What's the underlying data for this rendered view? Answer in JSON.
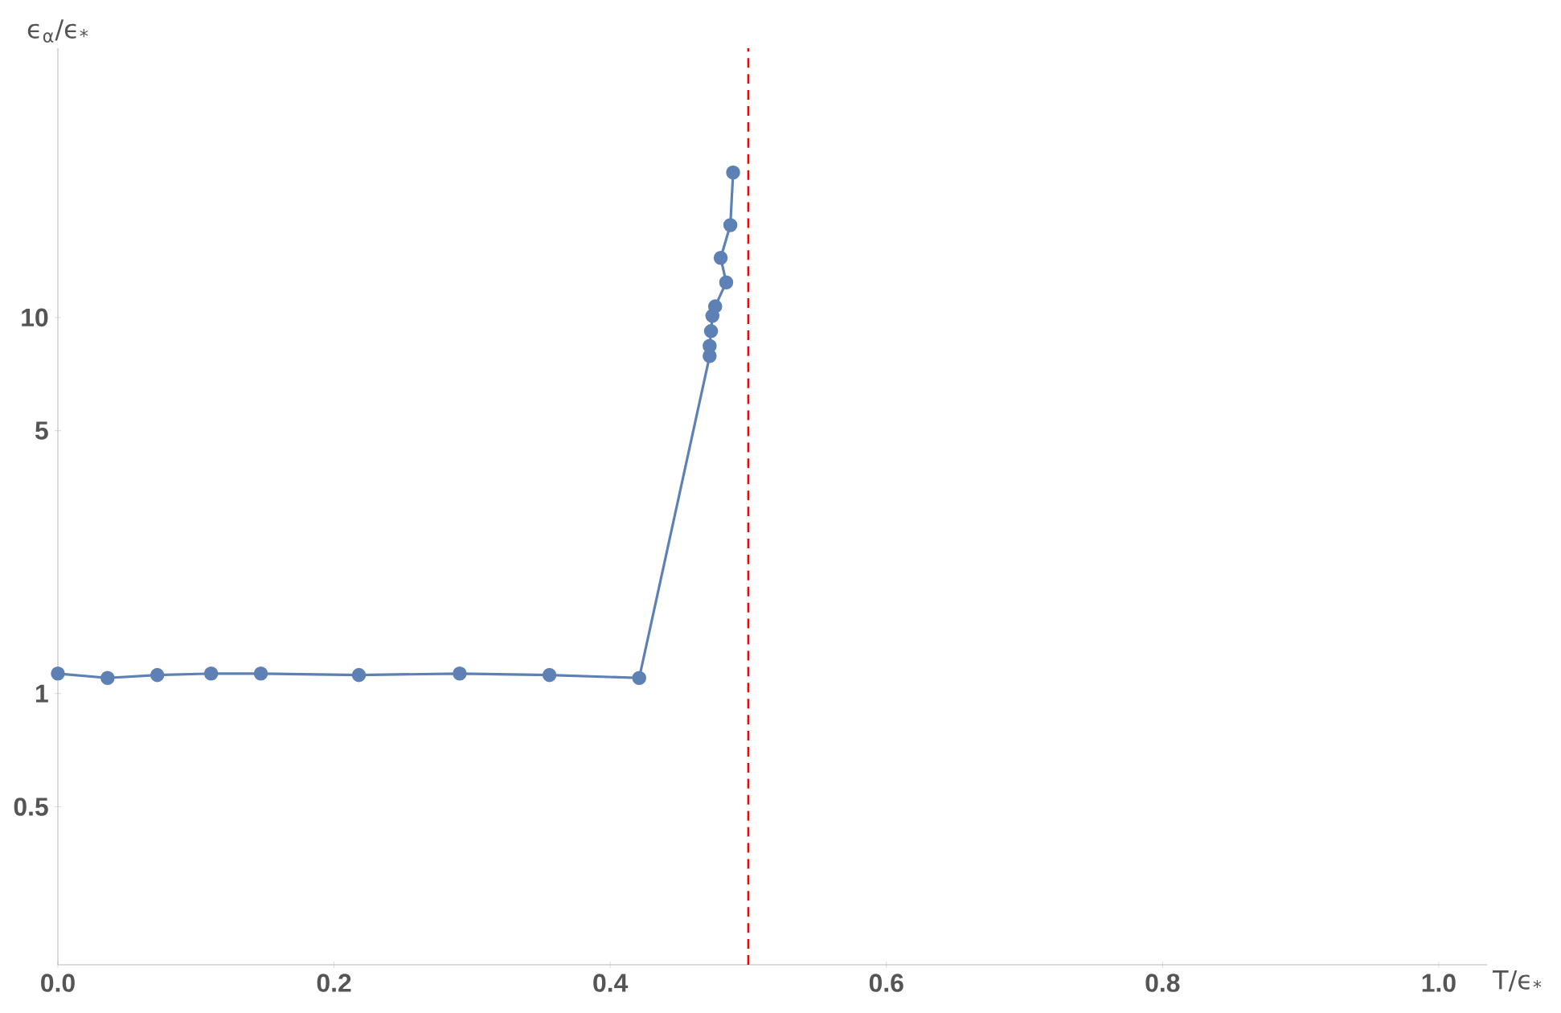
{
  "chart_data": {
    "type": "line",
    "xlabel": "T/ϵ$_{*}$",
    "ylabel": "ϵ$_{α}$/ϵ$_{*}$",
    "log": "y",
    "marker": "circle",
    "line_style": "solid",
    "xlim": [
      0,
      1.035
    ],
    "ylim": [
      0.19,
      52
    ],
    "xticks": [
      {
        "value": 0,
        "label": "0.0"
      },
      0.2,
      0.4,
      0.6,
      0.8,
      {
        "value": 1,
        "label": "1.0"
      }
    ],
    "yticks": [
      0.5,
      1,
      5,
      10
    ],
    "series": [
      {
        "color": "#5e81b5",
        "x": [
          0,
          0.036,
          0.072,
          0.111,
          0.147,
          0.218,
          0.291,
          0.356,
          0.421,
          0.472,
          0.472,
          0.473,
          0.474,
          0.476,
          0.484,
          0.48,
          0.487,
          0.489
        ],
        "values": [
          1.13,
          1.1,
          1.12,
          1.13,
          1.13,
          1.12,
          1.13,
          1.12,
          1.1,
          7.9,
          8.4,
          9.2,
          10.1,
          10.7,
          12.4,
          14.4,
          17.6,
          24.3
        ]
      }
    ],
    "ref_lines": [
      {
        "axis": "x",
        "value": 0.5,
        "color": "#ff0000",
        "line_style": "dashed"
      }
    ]
  }
}
